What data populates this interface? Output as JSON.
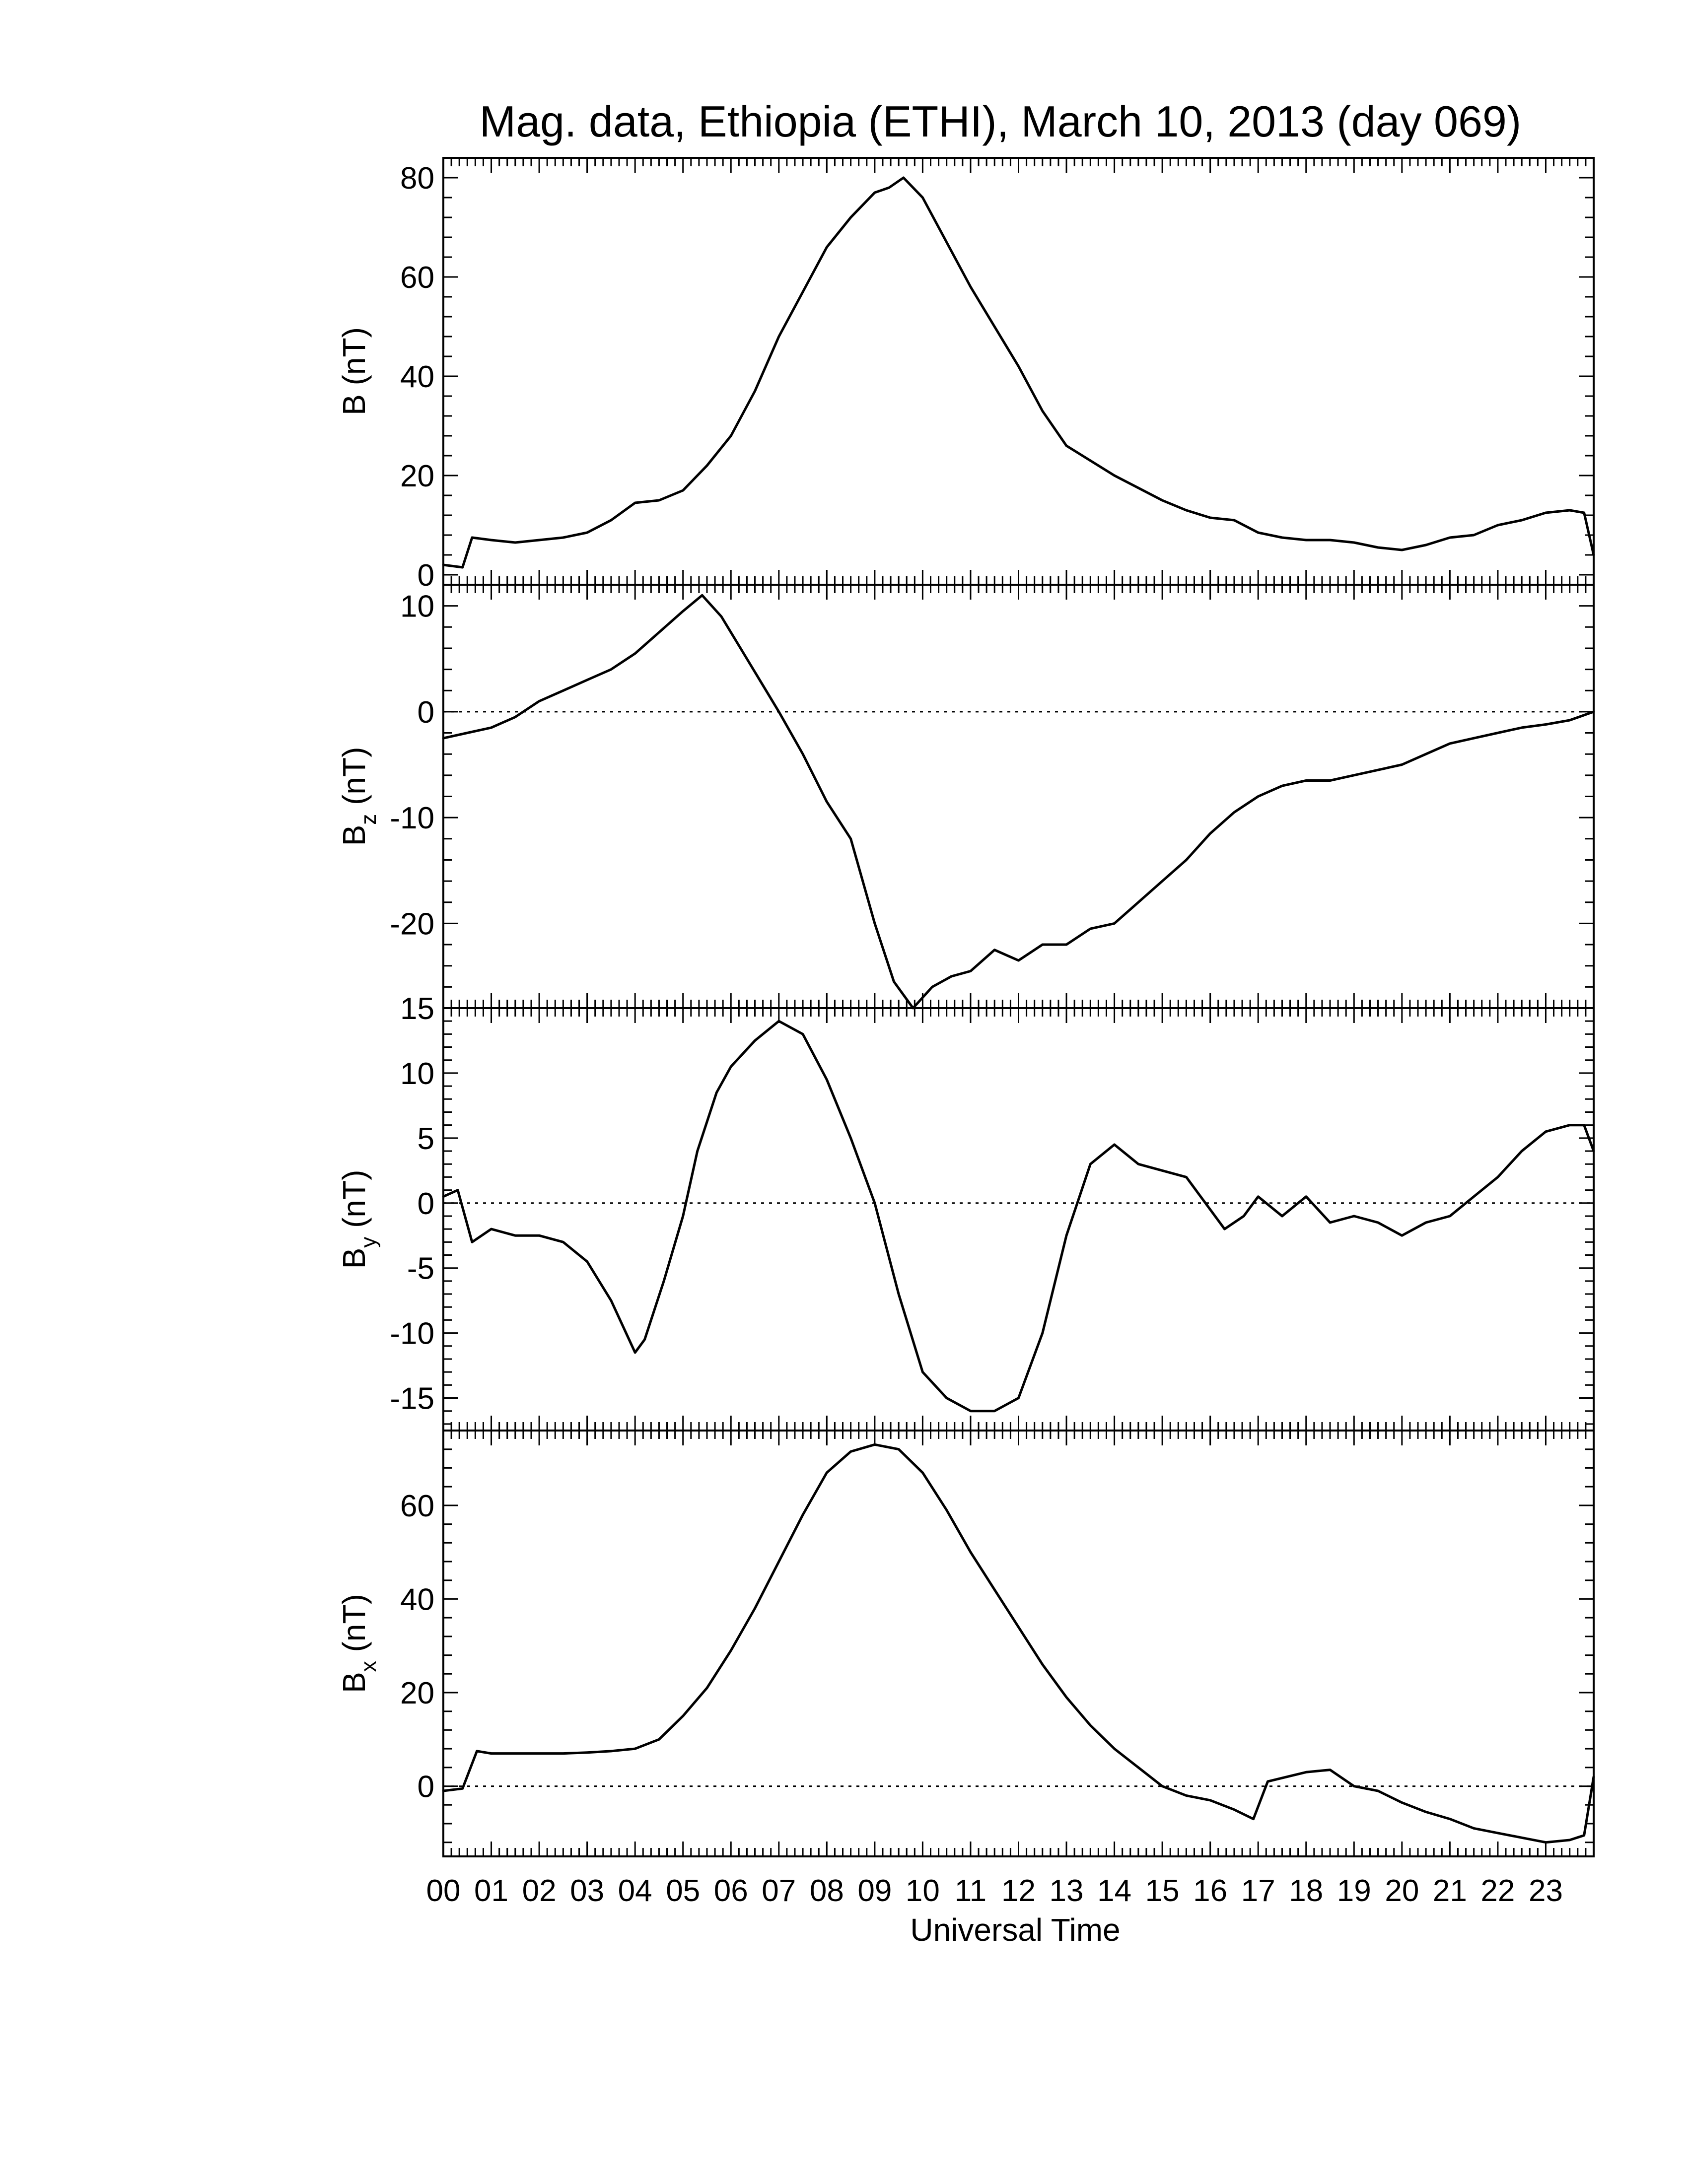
{
  "title": "Mag. data, Ethiopia (ETHI), March 10, 2013 (day 069)",
  "chart_data": [
    {
      "type": "line",
      "name": "B",
      "ylabel": "B (nT)",
      "ylabel_main": "B",
      "ylabel_sub": "",
      "ylabel_unit": "(nT)",
      "ylim": [
        -2,
        84
      ],
      "yticks": [
        0,
        20,
        40,
        60,
        80
      ],
      "zero_line": false,
      "x": [
        0,
        0.4,
        0.6,
        1.0,
        1.5,
        2.0,
        2.5,
        3.0,
        3.5,
        4.0,
        4.5,
        5.0,
        5.5,
        6.0,
        6.5,
        7.0,
        7.5,
        8.0,
        8.5,
        9.0,
        9.3,
        9.6,
        10.0,
        10.5,
        11.0,
        11.5,
        12.0,
        12.5,
        13.0,
        13.5,
        14.0,
        14.5,
        15.0,
        15.5,
        16.0,
        16.5,
        17.0,
        17.5,
        18.0,
        18.5,
        19.0,
        19.5,
        20.0,
        20.5,
        21.0,
        21.5,
        22.0,
        22.5,
        23.0,
        23.5,
        23.8,
        24.0
      ],
      "y": [
        2,
        1.5,
        7.5,
        7,
        6.5,
        7,
        7.5,
        8.5,
        11,
        14.5,
        15,
        17,
        22,
        28,
        37,
        48,
        57,
        66,
        72,
        77,
        78,
        80,
        76,
        67,
        58,
        50,
        42,
        33,
        26,
        23,
        20,
        17.5,
        15,
        13,
        11.5,
        11,
        8.5,
        7.5,
        7,
        7,
        6.5,
        5.5,
        5,
        6,
        7.5,
        8,
        10,
        11,
        12.5,
        13,
        12.5,
        4
      ]
    },
    {
      "type": "line",
      "name": "Bz",
      "ylabel": "Bz (nT)",
      "ylabel_main": "B",
      "ylabel_sub": "z",
      "ylabel_unit": "(nT)",
      "ylim": [
        -28,
        12
      ],
      "yticks": [
        10,
        0,
        -10,
        -20
      ],
      "zero_line": true,
      "x": [
        0,
        0.5,
        1.0,
        1.5,
        2.0,
        2.5,
        3.0,
        3.5,
        4.0,
        4.5,
        5.0,
        5.4,
        5.8,
        6.2,
        6.6,
        7.0,
        7.5,
        8.0,
        8.5,
        9.0,
        9.4,
        9.8,
        10.2,
        10.6,
        11.0,
        11.5,
        12.0,
        12.5,
        13.0,
        13.5,
        14.0,
        14.5,
        15.0,
        15.5,
        16.0,
        16.5,
        17.0,
        17.5,
        18.0,
        18.5,
        19.0,
        19.5,
        20.0,
        20.5,
        21.0,
        21.5,
        22.0,
        22.5,
        23.0,
        23.5,
        24.0
      ],
      "y": [
        -2.5,
        -2,
        -1.5,
        -0.5,
        1,
        2,
        3,
        4,
        5.5,
        7.5,
        9.5,
        11,
        9,
        6,
        3,
        0,
        -4,
        -8.5,
        -12,
        -20,
        -25.5,
        -28,
        -26,
        -25,
        -24.5,
        -22.5,
        -23.5,
        -22,
        -22,
        -20.5,
        -20,
        -18,
        -16,
        -14,
        -11.5,
        -9.5,
        -8,
        -7,
        -6.5,
        -6.5,
        -6,
        -5.5,
        -5,
        -4,
        -3,
        -2.5,
        -2,
        -1.5,
        -1.2,
        -0.8,
        0
      ]
    },
    {
      "type": "line",
      "name": "By",
      "ylabel": "By (nT)",
      "ylabel_main": "B",
      "ylabel_sub": "y",
      "ylabel_unit": "(nT)",
      "ylim": [
        -17.5,
        15
      ],
      "yticks": [
        15,
        10,
        5,
        0,
        -5,
        -10,
        -15
      ],
      "zero_line": true,
      "x": [
        0,
        0.3,
        0.6,
        1.0,
        1.5,
        2.0,
        2.5,
        3.0,
        3.5,
        4.0,
        4.2,
        4.6,
        5.0,
        5.3,
        5.7,
        6.0,
        6.5,
        7.0,
        7.5,
        8.0,
        8.5,
        9.0,
        9.5,
        10.0,
        10.5,
        11.0,
        11.5,
        12.0,
        12.5,
        13.0,
        13.5,
        14.0,
        14.5,
        15.0,
        15.5,
        16.0,
        16.3,
        16.7,
        17.0,
        17.5,
        18.0,
        18.5,
        19.0,
        19.5,
        20.0,
        20.5,
        21.0,
        21.5,
        22.0,
        22.5,
        23.0,
        23.5,
        23.8,
        24.0
      ],
      "y": [
        0.5,
        1,
        -3,
        -2,
        -2.5,
        -2.5,
        -3,
        -4.5,
        -7.5,
        -11.5,
        -10.5,
        -6,
        -1,
        4,
        8.5,
        10.5,
        12.5,
        14,
        13,
        9.5,
        5,
        0,
        -7,
        -13,
        -15,
        -16,
        -16,
        -15,
        -10,
        -2.5,
        3,
        4.5,
        3,
        2.5,
        2,
        -0.5,
        -2,
        -1,
        0.5,
        -1,
        0.5,
        -1.5,
        -1,
        -1.5,
        -2.5,
        -1.5,
        -1,
        0.5,
        2,
        4,
        5.5,
        6,
        6,
        4
      ]
    },
    {
      "type": "line",
      "name": "Bx",
      "ylabel": "Bx (nT)",
      "ylabel_main": "B",
      "ylabel_sub": "x",
      "ylabel_unit": "(nT)",
      "ylim": [
        -15,
        76
      ],
      "yticks": [
        60,
        40,
        20,
        0
      ],
      "zero_line": true,
      "x": [
        0,
        0.4,
        0.7,
        1.0,
        1.5,
        2.0,
        2.5,
        3.0,
        3.5,
        4.0,
        4.5,
        5.0,
        5.5,
        6.0,
        6.5,
        7.0,
        7.5,
        8.0,
        8.5,
        9.0,
        9.5,
        10.0,
        10.5,
        11.0,
        11.5,
        12.0,
        12.5,
        13.0,
        13.5,
        14.0,
        14.5,
        15.0,
        15.5,
        16.0,
        16.5,
        16.9,
        17.2,
        17.6,
        18.0,
        18.5,
        19.0,
        19.5,
        20.0,
        20.5,
        21.0,
        21.5,
        22.0,
        22.5,
        23.0,
        23.5,
        23.8,
        24.0
      ],
      "y": [
        -1,
        -0.5,
        7.5,
        7,
        7,
        7,
        7,
        7.2,
        7.5,
        8,
        10,
        15,
        21,
        29,
        38,
        48,
        58,
        67,
        71.5,
        73,
        72,
        67,
        59,
        50,
        42,
        34,
        26,
        19,
        13,
        8,
        4,
        0,
        -2,
        -3,
        -5,
        -7,
        1,
        2,
        3,
        3.5,
        0,
        -1,
        -3.5,
        -5.5,
        -7,
        -9,
        -10,
        -11,
        -12,
        -11.5,
        -10.5,
        2
      ]
    }
  ],
  "x_axis": {
    "xlim": [
      0,
      24
    ],
    "tick_labels": [
      "00",
      "01",
      "02",
      "03",
      "04",
      "05",
      "06",
      "07",
      "08",
      "09",
      "10",
      "11",
      "12",
      "13",
      "14",
      "15",
      "16",
      "17",
      "18",
      "19",
      "20",
      "21",
      "22",
      "23"
    ],
    "xlabel": "Universal Time"
  }
}
